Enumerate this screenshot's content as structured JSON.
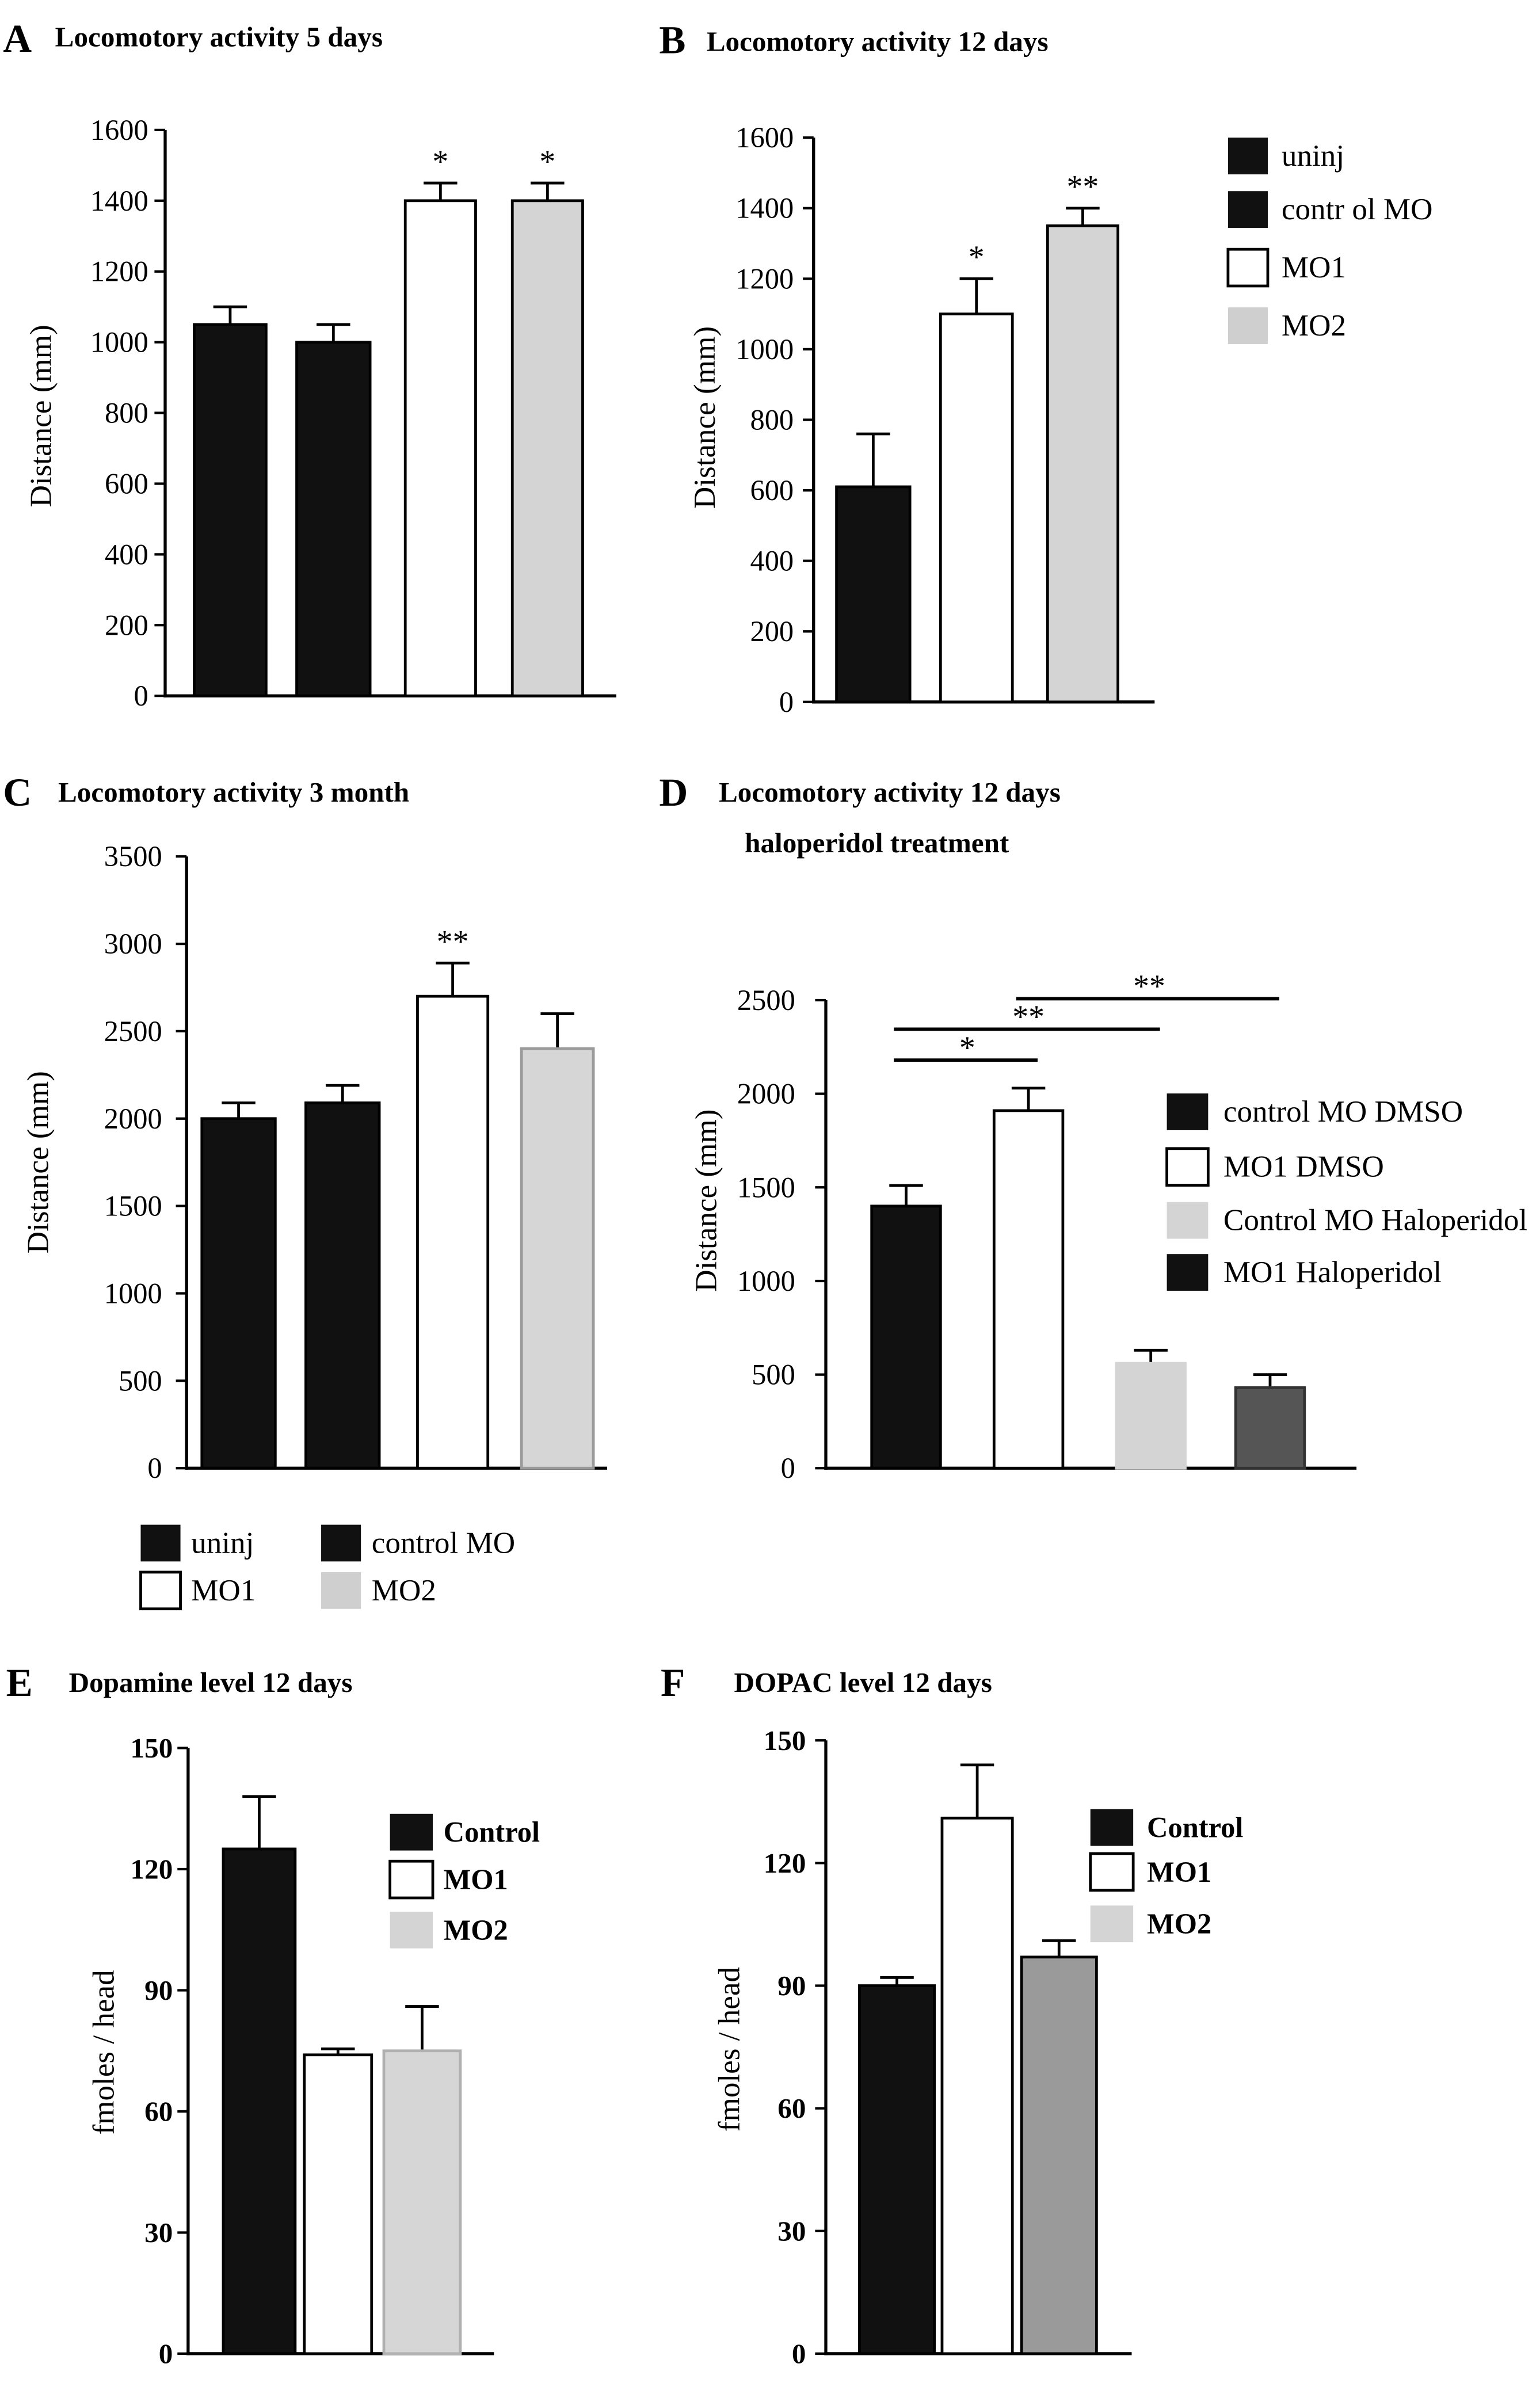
{
  "figure": {
    "background": "#ffffff"
  },
  "chart_data": [
    {
      "panel": "A",
      "type": "bar",
      "title": "Locomotory activity 5 days",
      "ylabel": "Distance (mm)",
      "ylim": [
        0,
        1600
      ],
      "yticks": [
        0,
        200,
        400,
        600,
        800,
        1000,
        1200,
        1400,
        1600
      ],
      "grid": false,
      "bars": [
        {
          "value": 1050,
          "error": 50,
          "color": "#111111",
          "edge": "#000000",
          "sig": null
        },
        {
          "value": 1000,
          "error": 50,
          "color": "#111111",
          "edge": "#000000",
          "sig": null
        },
        {
          "value": 1400,
          "error": 50,
          "color": "#ffffff",
          "edge": "#000000",
          "sig": "*"
        },
        {
          "value": 1400,
          "error": 50,
          "color": "#d4d4d4",
          "edge": "#000000",
          "sig": "*"
        }
      ],
      "legend": [],
      "comparisons": []
    },
    {
      "panel": "B",
      "type": "bar",
      "title": "Locomotory activity 12 days",
      "ylabel": "Distance (mm)",
      "ylim": [
        0,
        1600
      ],
      "yticks": [
        0,
        200,
        400,
        600,
        800,
        1000,
        1200,
        1400,
        1600
      ],
      "grid": false,
      "bars": [
        {
          "value": 610,
          "error": 150,
          "color": "#111111",
          "edge": "#000000",
          "sig": null
        },
        {
          "value": 1100,
          "error": 100,
          "color": "#ffffff",
          "edge": "#000000",
          "sig": "*"
        },
        {
          "value": 1350,
          "error": 50,
          "color": "#d4d4d4",
          "edge": "#000000",
          "sig": "**"
        }
      ],
      "legend_position": "right",
      "legend": [
        {
          "label": "uninj",
          "color": "#111111"
        },
        {
          "label": "contr ol MO",
          "color": "#111111"
        },
        {
          "label": "MO1",
          "color": "#ffffff"
        },
        {
          "label": "MO2",
          "color": "#cfcfcf"
        }
      ],
      "comparisons": []
    },
    {
      "panel": "C",
      "type": "bar",
      "title": "Locomotory activity 3 month",
      "ylabel": "Distance (mm)",
      "ylim": [
        0,
        3500
      ],
      "yticks": [
        0,
        500,
        1000,
        1500,
        2000,
        2500,
        3000,
        3500
      ],
      "grid": false,
      "bars": [
        {
          "value": 2000,
          "error": 90,
          "color": "#111111",
          "edge": "#000000",
          "sig": null
        },
        {
          "value": 2090,
          "error": 100,
          "color": "#111111",
          "edge": "#000000",
          "sig": null
        },
        {
          "value": 2700,
          "error": 190,
          "color": "#ffffff",
          "edge": "#000000",
          "sig": "**"
        },
        {
          "value": 2400,
          "error": 200,
          "color": "#d6d6d6",
          "edge": "#9a9a9a",
          "sig": null
        }
      ],
      "legend_position": "bottom",
      "legend": [
        {
          "label": "uninj",
          "color": "#111111"
        },
        {
          "label": "control MO",
          "color": "#111111"
        },
        {
          "label": "MO1",
          "color": "#ffffff"
        },
        {
          "label": "MO2",
          "color": "#cfcfcf"
        }
      ],
      "comparisons": []
    },
    {
      "panel": "D",
      "type": "bar",
      "title": "Locomotory activity 12 days",
      "subtitle": "haloperidol treatment",
      "ylabel": "Distance (mm)",
      "ylim": [
        0,
        2500
      ],
      "yticks": [
        0,
        500,
        1000,
        1500,
        2000,
        2500
      ],
      "grid": false,
      "bars": [
        {
          "value": 1400,
          "error": 110,
          "color": "#111111",
          "edge": "#000000",
          "sig": null
        },
        {
          "value": 1910,
          "error": 120,
          "color": "#ffffff",
          "edge": "#000000",
          "sig": null
        },
        {
          "value": 560,
          "error": 70,
          "color": "#d4d4d4",
          "edge": "#d4d4d4",
          "sig": null
        },
        {
          "value": 430,
          "error": 70,
          "color": "#555555",
          "edge": "#333333",
          "sig": null
        }
      ],
      "legend_position": "right",
      "legend": [
        {
          "label": "control MO DMSO",
          "color": "#111111"
        },
        {
          "label": "MO1 DMSO",
          "color": "#ffffff"
        },
        {
          "label": "Control MO Haloperidol",
          "color": "#d4d4d4"
        },
        {
          "label": "MO1 Haloperidol",
          "color": "#111111"
        }
      ],
      "comparisons": [
        {
          "between": [
            0,
            1
          ],
          "label": "*"
        },
        {
          "between": [
            0,
            2
          ],
          "label": "**"
        },
        {
          "between": [
            1,
            3
          ],
          "label": "**"
        }
      ]
    },
    {
      "panel": "E",
      "type": "bar",
      "title": "Dopamine level 12 days",
      "ylabel": "fmoles / head",
      "ylim": [
        0,
        150
      ],
      "yticks": [
        0,
        30,
        60,
        90,
        120,
        150
      ],
      "grid": false,
      "bars": [
        {
          "value": 125,
          "error": 13,
          "color": "#111111",
          "edge": "#000000",
          "sig": null
        },
        {
          "value": 74,
          "error": 1.5,
          "color": "#ffffff",
          "edge": "#000000",
          "sig": null
        },
        {
          "value": 75,
          "error": 11,
          "color": "#d6d6d6",
          "edge": "#b0b0b0",
          "sig": null
        }
      ],
      "legend_position": "top-right",
      "legend": [
        {
          "label": "Control",
          "color": "#111111"
        },
        {
          "label": "MO1",
          "color": "#ffffff"
        },
        {
          "label": "MO2",
          "color": "#d4d4d4"
        }
      ],
      "comparisons": []
    },
    {
      "panel": "F",
      "type": "bar",
      "title": "DOPAC level 12 days",
      "ylabel": "fmoles / head",
      "ylim": [
        0,
        150
      ],
      "yticks": [
        0,
        30,
        60,
        90,
        120,
        150
      ],
      "grid": false,
      "bars": [
        {
          "value": 90,
          "error": 2,
          "color": "#111111",
          "edge": "#000000",
          "sig": null
        },
        {
          "value": 131,
          "error": 13,
          "color": "#ffffff",
          "edge": "#000000",
          "sig": null
        },
        {
          "value": 97,
          "error": 4,
          "color": "#9a9a9a",
          "edge": "#000000",
          "sig": null
        }
      ],
      "legend_position": "top-right",
      "legend": [
        {
          "label": "Control",
          "color": "#111111"
        },
        {
          "label": "MO1",
          "color": "#ffffff"
        },
        {
          "label": "MO2",
          "color": "#d4d4d4"
        }
      ],
      "comparisons": []
    }
  ]
}
